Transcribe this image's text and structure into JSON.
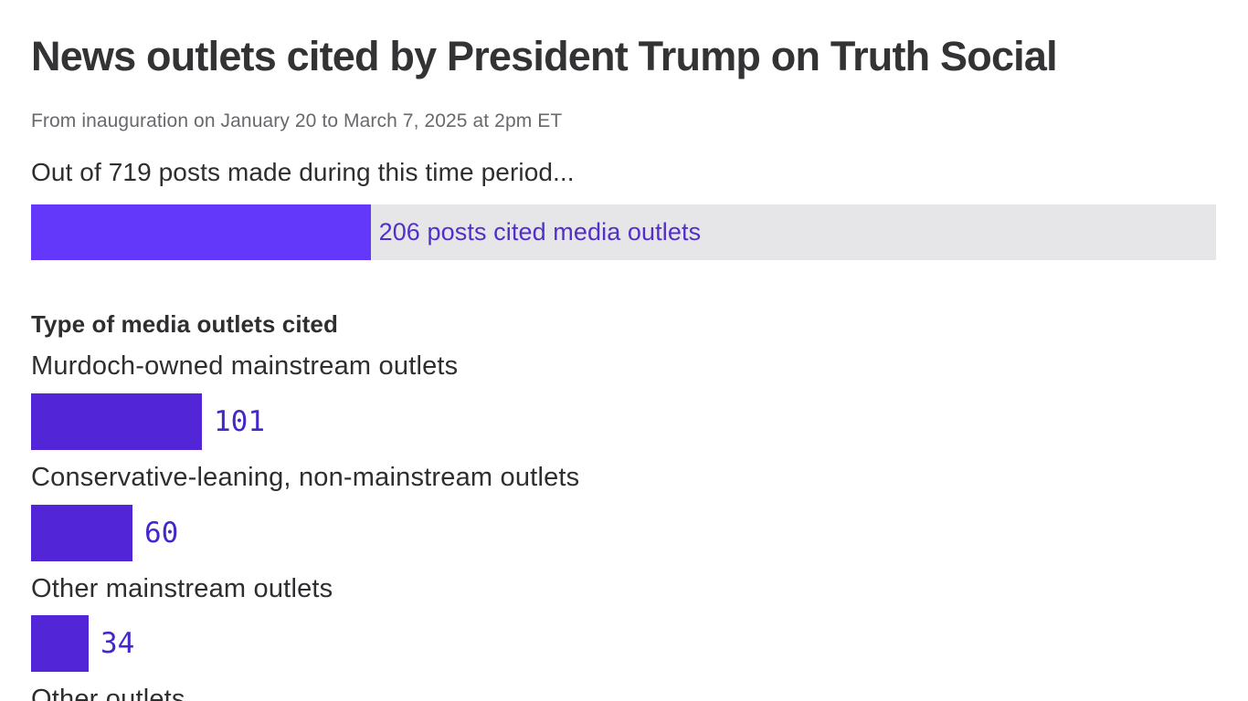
{
  "page": {
    "title": "News outlets cited by President Trump on Truth Social",
    "subtitle": "From inauguration on January 20 to March 7, 2025 at 2pm ET"
  },
  "colors": {
    "title_text": "#333335",
    "subtitle_text": "#69696d",
    "body_text": "#2e2e31",
    "overview_bar": "#6438fa",
    "overview_track": "#e6e5e8",
    "bar_label_text": "#5030c8",
    "category_bar": "#5226d6",
    "value_text": "#4527c9"
  },
  "chart_data": {
    "type": "bar",
    "orientation": "horizontal",
    "title": "News outlets cited by President Trump on Truth Social",
    "subtitle": "From inauguration on January 20 to March 7, 2025 at 2pm ET",
    "overview": {
      "lead_text": "Out of 719 posts made during this time period...",
      "total_posts": 719,
      "cited_posts": 206,
      "bar_label": "206 posts cited media outlets"
    },
    "section_heading": "Type of media outlets cited",
    "bars": [
      {
        "label": "Murdoch-owned mainstream outlets",
        "value": 101
      },
      {
        "label": "Conservative-leaning, non-mainstream outlets",
        "value": 60
      },
      {
        "label": "Other mainstream outlets",
        "value": 34
      },
      {
        "label": "Other outlets"
      }
    ],
    "layout_hints": {
      "grid": false,
      "axes_shown": false,
      "value_labels": "right of bar end, monospace, slashed zero",
      "last_category_clipped_by_viewport": true
    }
  }
}
